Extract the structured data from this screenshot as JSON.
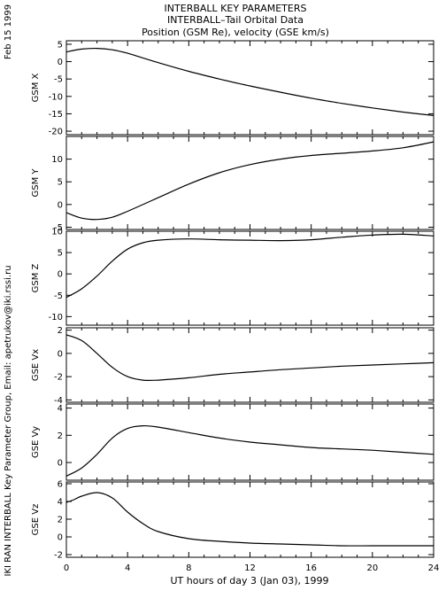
{
  "header": {
    "line1": "INTERBALL KEY PARAMETERS",
    "line2": "INTERBALL–Tail Orbital Data",
    "line3": "Position (GSM Re), velocity (GSE km/s)"
  },
  "side_labels": {
    "date": "Feb 15 1999",
    "credit": "IKI RAN INTERBALL Key Parameter Group, Email: apetrukov@iki.rssi.ru"
  },
  "chart_data": {
    "type": "line",
    "xlabel": "UT hours of day   3 (Jan 03), 1999",
    "xlim": [
      0,
      24
    ],
    "xticks": [
      0,
      4,
      8,
      12,
      16,
      20,
      24
    ],
    "panels": [
      {
        "ylabel": "GSM X",
        "ylim": [
          -21,
          6
        ],
        "yticks": [
          5,
          0,
          -5,
          -10,
          -15,
          -20
        ],
        "x": [
          0,
          1,
          2,
          3,
          4,
          6,
          8,
          10,
          12,
          14,
          16,
          18,
          20,
          22,
          24
        ],
        "y": [
          2.8,
          3.6,
          3.8,
          3.4,
          2.4,
          -0.3,
          -2.8,
          -5.0,
          -7.0,
          -8.8,
          -10.5,
          -12.0,
          -13.3,
          -14.5,
          -15.5
        ]
      },
      {
        "ylabel": "GSM Y",
        "ylim": [
          -5.5,
          15
        ],
        "yticks": [
          10,
          5,
          0,
          -5
        ],
        "x": [
          0,
          1,
          2,
          3,
          4,
          6,
          8,
          10,
          12,
          14,
          16,
          18,
          20,
          22,
          24
        ],
        "y": [
          -1.8,
          -3.0,
          -3.3,
          -2.8,
          -1.5,
          1.5,
          4.5,
          7.0,
          8.8,
          10.0,
          10.8,
          11.3,
          11.8,
          12.5,
          13.8
        ]
      },
      {
        "ylabel": "GSM Z",
        "ylim": [
          -12,
          10
        ],
        "yticks": [
          10,
          5,
          0,
          -5,
          -10
        ],
        "x": [
          0,
          1,
          2,
          3,
          4,
          5,
          6,
          8,
          10,
          12,
          14,
          16,
          18,
          20,
          22,
          24
        ],
        "y": [
          -5.5,
          -3.5,
          -0.5,
          3.0,
          5.8,
          7.3,
          7.9,
          8.2,
          8.0,
          7.9,
          7.8,
          8.0,
          8.6,
          9.1,
          9.3,
          8.9
        ]
      },
      {
        "ylabel": "GSE Vx",
        "ylim": [
          -4.2,
          2.2
        ],
        "yticks": [
          2,
          0,
          -2,
          -4
        ],
        "x": [
          0,
          1,
          2,
          3,
          4,
          5,
          6,
          8,
          10,
          12,
          14,
          16,
          18,
          20,
          22,
          24
        ],
        "y": [
          1.6,
          1.1,
          0.0,
          -1.2,
          -2.0,
          -2.3,
          -2.3,
          -2.1,
          -1.8,
          -1.6,
          -1.4,
          -1.25,
          -1.1,
          -1.0,
          -0.9,
          -0.8
        ]
      },
      {
        "ylabel": "GSE Vy",
        "ylim": [
          -1.3,
          4.3
        ],
        "yticks": [
          4,
          2,
          0
        ],
        "x": [
          0,
          1,
          2,
          3,
          4,
          5,
          6,
          8,
          10,
          12,
          14,
          16,
          18,
          20,
          22,
          24
        ],
        "y": [
          -1.0,
          -0.4,
          0.6,
          1.8,
          2.5,
          2.7,
          2.6,
          2.2,
          1.8,
          1.5,
          1.3,
          1.1,
          1.0,
          0.9,
          0.75,
          0.6
        ]
      },
      {
        "ylabel": "GSE Vz",
        "ylim": [
          -2.3,
          6.2
        ],
        "yticks": [
          6,
          4,
          2,
          0,
          -2
        ],
        "x": [
          0,
          0.5,
          1,
          2,
          3,
          4,
          5,
          6,
          8,
          10,
          12,
          14,
          16,
          18,
          20,
          22,
          24
        ],
        "y": [
          3.9,
          4.2,
          4.6,
          5.0,
          4.4,
          2.8,
          1.5,
          0.6,
          -0.2,
          -0.5,
          -0.7,
          -0.8,
          -0.9,
          -1.0,
          -1.0,
          -1.0,
          -1.0
        ]
      }
    ]
  }
}
